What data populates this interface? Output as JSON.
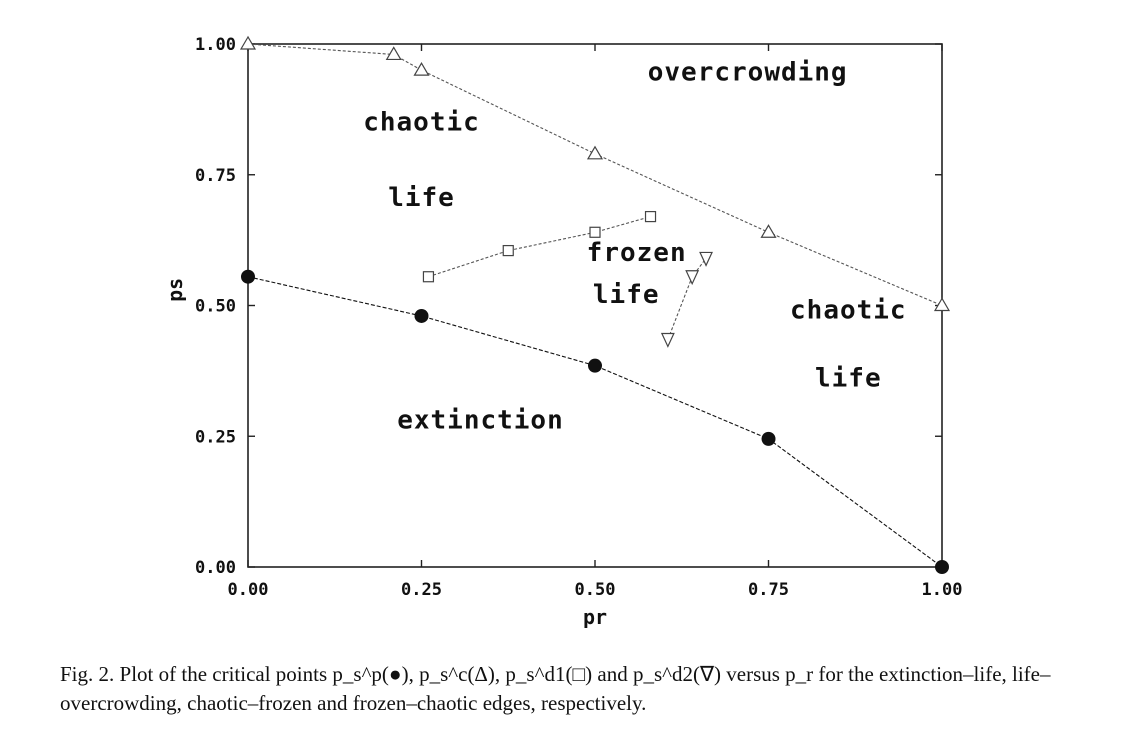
{
  "chart_data": {
    "type": "line",
    "xlabel": "pr",
    "ylabel": "ps",
    "xlim": [
      0,
      1
    ],
    "ylim": [
      0,
      1
    ],
    "xticks": [
      "0.00",
      "0.25",
      "0.50",
      "0.75",
      "1.00"
    ],
    "yticks": [
      "0.00",
      "0.25",
      "0.50",
      "0.75",
      "1.00"
    ],
    "grid": false,
    "series": [
      {
        "marker": "filled-circle",
        "color": "#111111",
        "x": [
          0.0,
          0.25,
          0.5,
          0.75,
          1.0
        ],
        "y": [
          0.555,
          0.48,
          0.385,
          0.245,
          0.0
        ]
      },
      {
        "marker": "triangle-up",
        "color": "#555555",
        "x": [
          0.0,
          0.21,
          0.25,
          0.5,
          0.75,
          1.0
        ],
        "y": [
          1.0,
          0.98,
          0.95,
          0.79,
          0.64,
          0.5
        ]
      },
      {
        "marker": "square",
        "color": "#555555",
        "x": [
          0.26,
          0.375,
          0.5,
          0.58
        ],
        "y": [
          0.555,
          0.605,
          0.64,
          0.67
        ]
      },
      {
        "marker": "triangle-down",
        "color": "#555555",
        "x": [
          0.605,
          0.64,
          0.66
        ],
        "y": [
          0.435,
          0.555,
          0.59
        ]
      }
    ],
    "annotations": [
      {
        "text": "overcrowding",
        "x": 0.72,
        "y": 0.93
      },
      {
        "text": "chaotic",
        "x": 0.25,
        "y": 0.835
      },
      {
        "text": "life",
        "x": 0.25,
        "y": 0.69
      },
      {
        "text": "frozen",
        "x": 0.56,
        "y": 0.585
      },
      {
        "text": "life",
        "x": 0.545,
        "y": 0.505
      },
      {
        "text": "chaotic",
        "x": 0.865,
        "y": 0.475
      },
      {
        "text": "life",
        "x": 0.865,
        "y": 0.345
      },
      {
        "text": "extinction",
        "x": 0.335,
        "y": 0.265
      }
    ]
  },
  "caption": "Fig. 2. Plot of the critical points p_s^p(●), p_s^c(Δ), p_s^d1(□) and p_s^d2(∇) versus p_r for the extinction–life, life–overcrowding, chaotic–frozen and frozen–chaotic edges, respectively."
}
